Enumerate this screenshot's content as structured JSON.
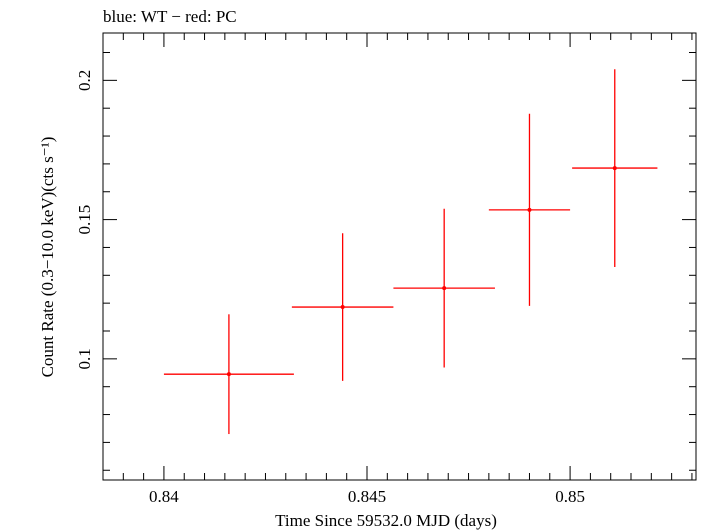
{
  "chart_data": {
    "type": "scatter",
    "title": "blue: WT − red: PC",
    "xlabel": "Time Since 59532.0 MJD (days)",
    "ylabel": "Count Rate (0.3−10.0 keV)(cts s⁻¹)",
    "xlim": [
      0.8385,
      0.8531
    ],
    "ylim": [
      0.0565,
      0.217
    ],
    "x_ticks": [
      {
        "value": 0.84,
        "label": "0.84"
      },
      {
        "value": 0.845,
        "label": "0.845"
      },
      {
        "value": 0.85,
        "label": "0.85"
      }
    ],
    "y_ticks": [
      {
        "value": 0.1,
        "label": "0.1"
      },
      {
        "value": 0.15,
        "label": "0.15"
      },
      {
        "value": 0.2,
        "label": "0.2"
      }
    ],
    "series": [
      {
        "name": "PC",
        "color": "#ff0000",
        "points": [
          {
            "x": 0.8416,
            "y": 0.0945,
            "xerr_lo": 0.0016,
            "xerr_hi": 0.0016,
            "yerr_lo": 0.0215,
            "yerr_hi": 0.0215
          },
          {
            "x": 0.8444,
            "y": 0.1186,
            "xerr_lo": 0.00125,
            "xerr_hi": 0.00125,
            "yerr_lo": 0.0265,
            "yerr_hi": 0.0265
          },
          {
            "x": 0.8469,
            "y": 0.1254,
            "xerr_lo": 0.00125,
            "xerr_hi": 0.00125,
            "yerr_lo": 0.0285,
            "yerr_hi": 0.0285
          },
          {
            "x": 0.849,
            "y": 0.1535,
            "xerr_lo": 0.001,
            "xerr_hi": 0.001,
            "yerr_lo": 0.0345,
            "yerr_hi": 0.0345
          },
          {
            "x": 0.8511,
            "y": 0.1685,
            "xerr_lo": 0.00105,
            "xerr_hi": 0.00105,
            "yerr_lo": 0.0355,
            "yerr_hi": 0.0355
          }
        ]
      }
    ]
  }
}
